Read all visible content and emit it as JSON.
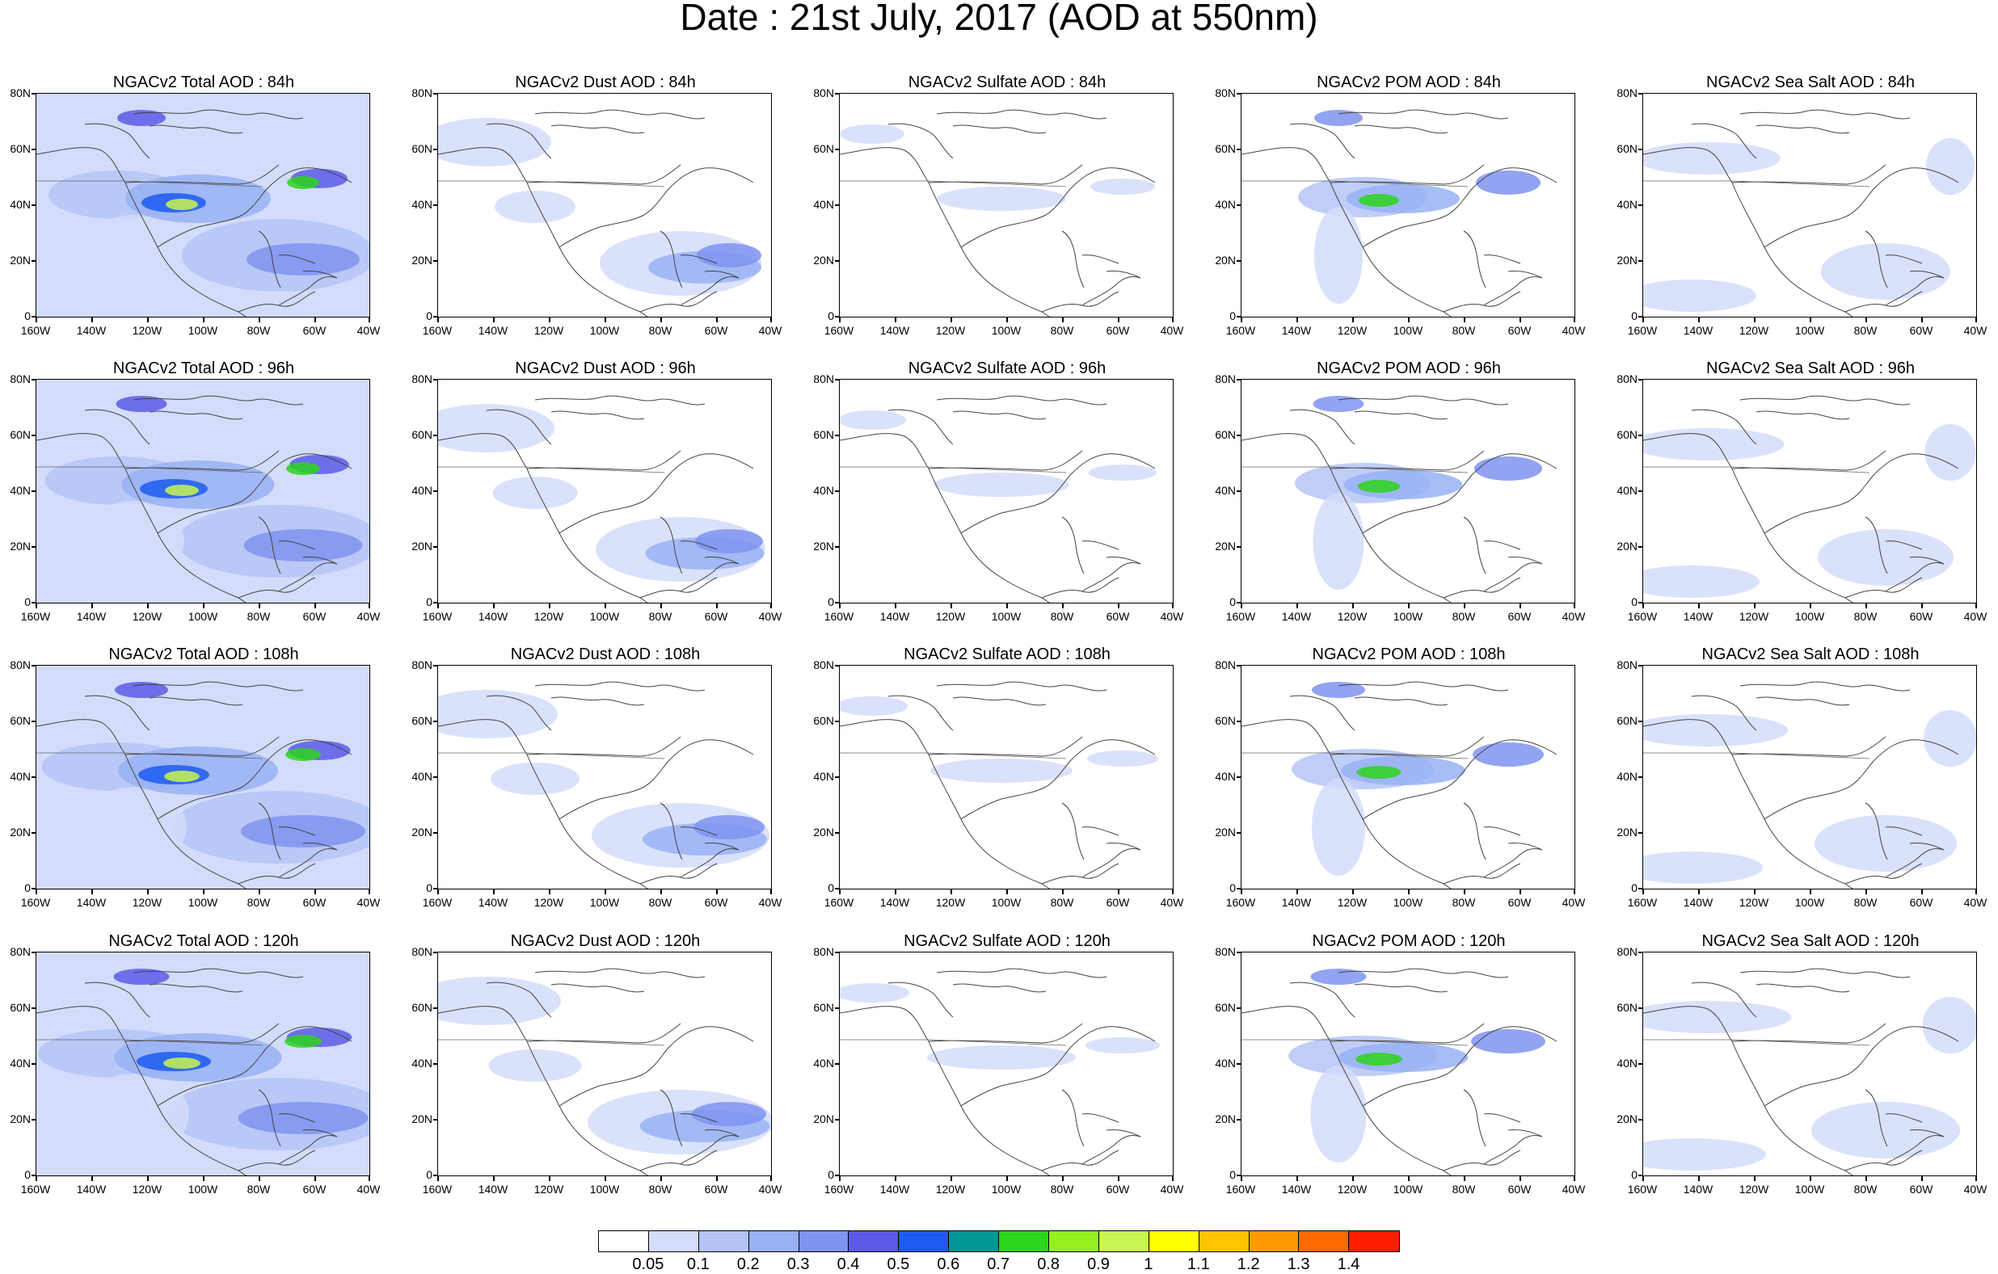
{
  "title": "Date : 21st July, 2017 (AOD at 550nm)",
  "y_ticks": [
    "80N",
    "60N",
    "40N",
    "20N",
    "0"
  ],
  "x_ticks": [
    "160W",
    "140W",
    "120W",
    "100W",
    "80W",
    "60W",
    "40W"
  ],
  "panel_titles": [
    [
      "NGACv2 Total AOD : 84h",
      "NGACv2 Dust AOD : 84h",
      "NGACv2 Sulfate AOD : 84h",
      "NGACv2 POM AOD : 84h",
      "NGACv2 Sea Salt AOD : 84h"
    ],
    [
      "NGACv2 Total AOD : 96h",
      "NGACv2 Dust AOD : 96h",
      "NGACv2 Sulfate AOD : 96h",
      "NGACv2 POM AOD : 96h",
      "NGACv2 Sea Salt AOD : 96h"
    ],
    [
      "NGACv2 Total AOD : 108h",
      "NGACv2 Dust AOD : 108h",
      "NGACv2 Sulfate AOD : 108h",
      "NGACv2 POM AOD : 108h",
      "NGACv2 Sea Salt AOD : 108h"
    ],
    [
      "NGACv2 Total AOD : 120h",
      "NGACv2 Dust AOD : 120h",
      "NGACv2 Sulfate AOD : 120h",
      "NGACv2 POM AOD : 120h",
      "NGACv2 Sea Salt  AOD : 120h"
    ]
  ],
  "colorbar": {
    "labels": [
      "0.05",
      "0.1",
      "0.2",
      "0.3",
      "0.4",
      "0.5",
      "0.6",
      "0.7",
      "0.8",
      "0.9",
      "1",
      "1.1",
      "1.2",
      "1.3",
      "1.4"
    ],
    "colors": [
      "#ffffff",
      "#d3dcfa",
      "#b4c4f6",
      "#98b1f4",
      "#7f93f0",
      "#5a5ae6",
      "#1c5af0",
      "#009694",
      "#2dd41c",
      "#96f01e",
      "#c8f550",
      "#ffff00",
      "#ffc400",
      "#ff9900",
      "#ff6a00",
      "#ff1e00"
    ]
  }
}
